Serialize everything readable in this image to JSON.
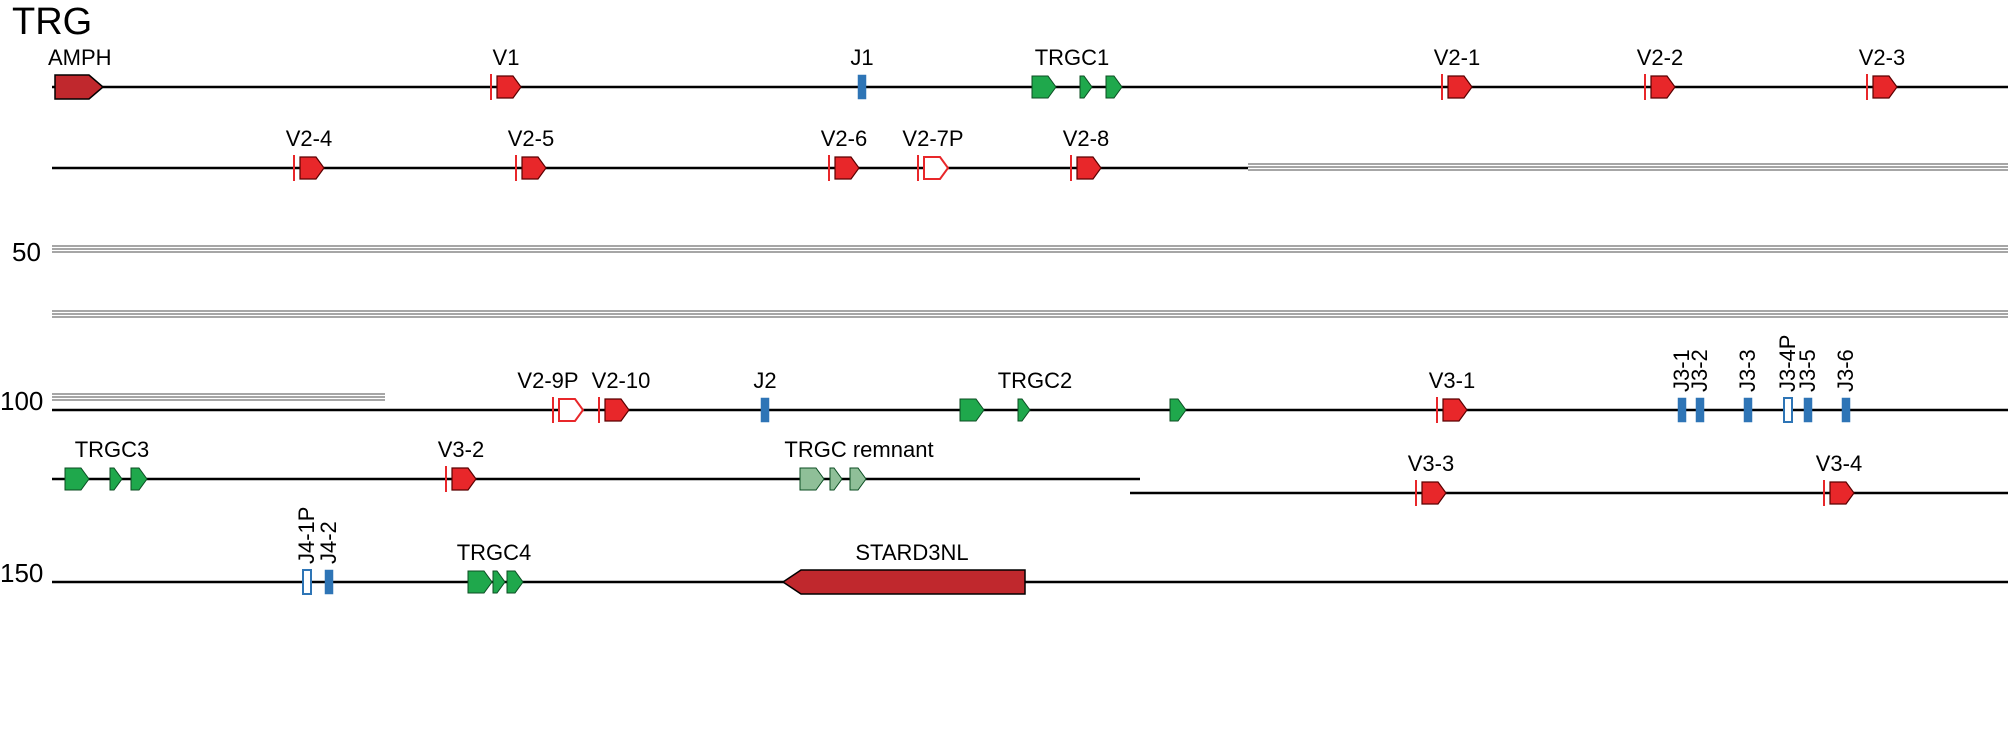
{
  "title": "TRG",
  "colors": {
    "v_gene": "#e8272a",
    "v_gene_outline": "#5a0000",
    "j_segment": "#2e75b6",
    "c_gene": "#1fa84c",
    "c_gene_outline": "#0b4d22",
    "remnant": "#8fbf98",
    "flank_gene": "#c0282d",
    "line": "#000000",
    "gap_line": "#888888"
  },
  "rows": [
    {
      "id": "row-1",
      "axis_label": "",
      "genes": [
        {
          "label": "AMPH",
          "kind": "flank",
          "orientation": "forward"
        },
        {
          "label": "V1",
          "kind": "v"
        },
        {
          "label": "J1",
          "kind": "j"
        },
        {
          "label": "TRGC1",
          "kind": "c"
        },
        {
          "label": "V2-1",
          "kind": "v"
        },
        {
          "label": "V2-2",
          "kind": "v"
        },
        {
          "label": "V2-3",
          "kind": "v"
        }
      ]
    },
    {
      "id": "row-2",
      "axis_label": "",
      "genes": [
        {
          "label": "V2-4",
          "kind": "v"
        },
        {
          "label": "V2-5",
          "kind": "v"
        },
        {
          "label": "V2-6",
          "kind": "v"
        },
        {
          "label": "V2-7P",
          "kind": "v-pseudo"
        },
        {
          "label": "V2-8",
          "kind": "v"
        }
      ]
    },
    {
      "id": "row-3",
      "axis_label": "50",
      "genes": []
    },
    {
      "id": "row-4",
      "axis_label": "",
      "genes": []
    },
    {
      "id": "row-5",
      "axis_label": "100",
      "genes": [
        {
          "label": "V2-9P",
          "kind": "v-pseudo"
        },
        {
          "label": "V2-10",
          "kind": "v"
        },
        {
          "label": "J2",
          "kind": "j"
        },
        {
          "label": "TRGC2",
          "kind": "c"
        },
        {
          "label": "V3-1",
          "kind": "v"
        },
        {
          "label": "J3-1",
          "kind": "j"
        },
        {
          "label": "J3-2",
          "kind": "j"
        },
        {
          "label": "J3-3",
          "kind": "j"
        },
        {
          "label": "J3-4P",
          "kind": "j-pseudo"
        },
        {
          "label": "J3-5",
          "kind": "j"
        },
        {
          "label": "J3-6",
          "kind": "j"
        }
      ]
    },
    {
      "id": "row-6",
      "axis_label": "",
      "genes": [
        {
          "label": "TRGC3",
          "kind": "c"
        },
        {
          "label": "V3-2",
          "kind": "v"
        },
        {
          "label": "TRGC remnant",
          "kind": "c-remnant"
        },
        {
          "label": "V3-3",
          "kind": "v"
        },
        {
          "label": "V3-4",
          "kind": "v"
        }
      ]
    },
    {
      "id": "row-7",
      "axis_label": "150",
      "genes": [
        {
          "label": "J4-1P",
          "kind": "j-pseudo"
        },
        {
          "label": "J4-2",
          "kind": "j"
        },
        {
          "label": "TRGC4",
          "kind": "c"
        },
        {
          "label": "STARD3NL",
          "kind": "flank",
          "orientation": "reverse"
        }
      ]
    }
  ]
}
